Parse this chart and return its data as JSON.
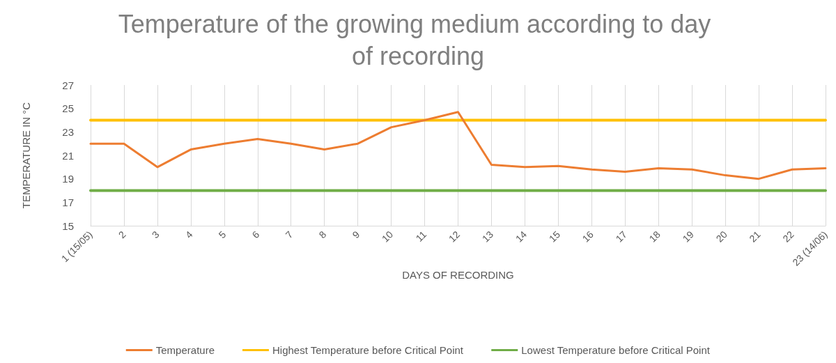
{
  "chart_data": {
    "type": "line",
    "title": "Temperature of the growing medium according to day of recording",
    "xlabel": "DAYS OF RECORDING",
    "ylabel": "TEMPERATURE IN °C",
    "categories": [
      "1 (15/05)",
      "2",
      "3",
      "4",
      "5",
      "6",
      "7",
      "8",
      "9",
      "10",
      "11",
      "12",
      "13",
      "14",
      "15",
      "16",
      "17",
      "18",
      "19",
      "20",
      "21",
      "22",
      "23 (14/06)"
    ],
    "series": [
      {
        "name": "Temperature",
        "color": "#ed7d31",
        "values": [
          22,
          22,
          20,
          21.5,
          22,
          22.4,
          22,
          21.5,
          22,
          23.4,
          24,
          24.7,
          20.2,
          20,
          20.1,
          19.8,
          19.6,
          19.9,
          19.8,
          19.3,
          19,
          19.8,
          19.9
        ]
      },
      {
        "name": "Highest Temperature before Critical Point",
        "color": "#ffc000",
        "values": [
          24,
          24,
          24,
          24,
          24,
          24,
          24,
          24,
          24,
          24,
          24,
          24,
          24,
          24,
          24,
          24,
          24,
          24,
          24,
          24,
          24,
          24,
          24
        ]
      },
      {
        "name": "Lowest Temperature before Critical Point",
        "color": "#70ad47",
        "values": [
          18,
          18,
          18,
          18,
          18,
          18,
          18,
          18,
          18,
          18,
          18,
          18,
          18,
          18,
          18,
          18,
          18,
          18,
          18,
          18,
          18,
          18,
          18
        ]
      }
    ],
    "ylim": [
      15,
      27
    ],
    "yticks": [
      15,
      17,
      19,
      21,
      23,
      25,
      27
    ],
    "grid": "x",
    "legend": "bottom",
    "marker": "none"
  }
}
